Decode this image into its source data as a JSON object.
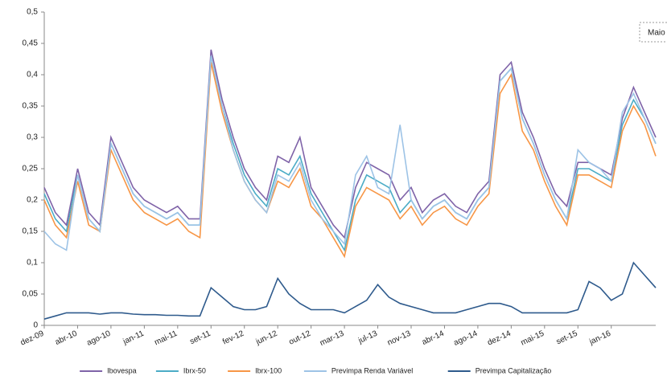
{
  "chart_data": {
    "type": "line",
    "annotation": "Maio",
    "categories": [
      "dez-09",
      null,
      null,
      "abr-10",
      null,
      null,
      "ago-10",
      null,
      null,
      "jan-11",
      null,
      null,
      "mai-11",
      null,
      null,
      "set-11",
      null,
      null,
      "fev-12",
      null,
      null,
      "jun-12",
      null,
      null,
      "out-12",
      null,
      null,
      "mar-13",
      null,
      null,
      "jul-13",
      null,
      null,
      "nov-13",
      null,
      null,
      "abr-14",
      null,
      null,
      "ago-14",
      null,
      null,
      "dez-14",
      null,
      null,
      "mai-15",
      null,
      null,
      "set-15",
      null,
      null,
      "jan-16",
      null,
      null,
      null,
      null
    ],
    "ylim": [
      0,
      0.5
    ],
    "yticks": [
      0,
      {
        "value": 0.05,
        "label": "0,05"
      },
      {
        "value": 0.1,
        "label": "0,1"
      },
      {
        "value": 0.15,
        "label": "0,15"
      },
      {
        "value": 0.2,
        "label": "0,2"
      },
      {
        "value": 0.25,
        "label": "0,25"
      },
      {
        "value": 0.3,
        "label": "0,3"
      },
      {
        "value": 0.35,
        "label": "0,35"
      },
      {
        "value": 0.4,
        "label": "0,4"
      },
      {
        "value": 0.45,
        "label": "0,45"
      },
      {
        "value": 0.5,
        "label": "0,5"
      }
    ],
    "legend": "bottom",
    "series": [
      {
        "name": "Ibovespa",
        "color": "#7f63a8",
        "values": [
          0.22,
          0.18,
          0.16,
          0.25,
          0.18,
          0.16,
          0.3,
          0.26,
          0.22,
          0.2,
          0.19,
          0.18,
          0.19,
          0.17,
          0.17,
          0.44,
          0.36,
          0.3,
          0.25,
          0.22,
          0.2,
          0.27,
          0.26,
          0.3,
          0.22,
          0.19,
          0.16,
          0.14,
          0.22,
          0.26,
          0.25,
          0.24,
          0.2,
          0.22,
          0.18,
          0.2,
          0.21,
          0.19,
          0.18,
          0.21,
          0.23,
          0.4,
          0.42,
          0.34,
          0.3,
          0.25,
          0.21,
          0.19,
          0.26,
          0.26,
          0.25,
          0.24,
          0.33,
          0.38,
          0.34,
          0.3
        ]
      },
      {
        "name": "Ibrx-50",
        "color": "#4bacc6",
        "values": [
          0.21,
          0.17,
          0.15,
          0.24,
          0.17,
          0.15,
          0.29,
          0.25,
          0.21,
          0.19,
          0.18,
          0.17,
          0.18,
          0.16,
          0.16,
          0.43,
          0.35,
          0.29,
          0.24,
          0.21,
          0.19,
          0.25,
          0.24,
          0.27,
          0.21,
          0.18,
          0.15,
          0.12,
          0.2,
          0.24,
          0.23,
          0.22,
          0.18,
          0.2,
          0.17,
          0.19,
          0.2,
          0.18,
          0.17,
          0.2,
          0.22,
          0.39,
          0.41,
          0.33,
          0.29,
          0.24,
          0.2,
          0.17,
          0.25,
          0.25,
          0.24,
          0.23,
          0.32,
          0.36,
          0.33,
          0.29
        ]
      },
      {
        "name": "Ibrx-100",
        "color": "#f79646",
        "values": [
          0.2,
          0.16,
          0.14,
          0.23,
          0.16,
          0.15,
          0.28,
          0.24,
          0.2,
          0.18,
          0.17,
          0.16,
          0.17,
          0.15,
          0.14,
          0.42,
          0.34,
          0.28,
          0.23,
          0.2,
          0.18,
          0.23,
          0.22,
          0.25,
          0.19,
          0.17,
          0.14,
          0.11,
          0.19,
          0.22,
          0.21,
          0.2,
          0.17,
          0.19,
          0.16,
          0.18,
          0.19,
          0.17,
          0.16,
          0.19,
          0.21,
          0.37,
          0.4,
          0.31,
          0.28,
          0.23,
          0.19,
          0.16,
          0.24,
          0.24,
          0.23,
          0.22,
          0.31,
          0.35,
          0.32,
          0.27
        ]
      },
      {
        "name": "Previmpa Renda Variável",
        "color": "#9dc3e6",
        "values": [
          0.15,
          0.13,
          0.12,
          0.24,
          0.17,
          0.15,
          0.29,
          0.25,
          0.21,
          0.19,
          0.18,
          0.17,
          0.18,
          0.16,
          0.16,
          0.43,
          0.35,
          0.28,
          0.23,
          0.2,
          0.18,
          0.24,
          0.23,
          0.26,
          0.2,
          0.17,
          0.15,
          0.13,
          0.24,
          0.27,
          0.22,
          0.21,
          0.32,
          0.2,
          0.17,
          0.19,
          0.2,
          0.18,
          0.17,
          0.2,
          0.22,
          0.39,
          0.41,
          0.33,
          0.29,
          0.24,
          0.2,
          0.17,
          0.28,
          0.26,
          0.25,
          0.23,
          0.34,
          0.37,
          0.33,
          0.29
        ]
      },
      {
        "name": "Previmpa Capitalização",
        "color": "#2e5a8c",
        "values": [
          0.01,
          0.015,
          0.02,
          0.02,
          0.02,
          0.018,
          0.02,
          0.02,
          0.018,
          0.017,
          0.017,
          0.016,
          0.016,
          0.015,
          0.015,
          0.06,
          0.045,
          0.03,
          0.025,
          0.025,
          0.03,
          0.075,
          0.05,
          0.035,
          0.025,
          0.025,
          0.025,
          0.02,
          0.03,
          0.04,
          0.065,
          0.045,
          0.035,
          0.03,
          0.025,
          0.02,
          0.02,
          0.02,
          0.025,
          0.03,
          0.035,
          0.035,
          0.03,
          0.02,
          0.02,
          0.02,
          0.02,
          0.02,
          0.025,
          0.07,
          0.06,
          0.04,
          0.05,
          0.1,
          0.08,
          0.06
        ]
      }
    ]
  }
}
